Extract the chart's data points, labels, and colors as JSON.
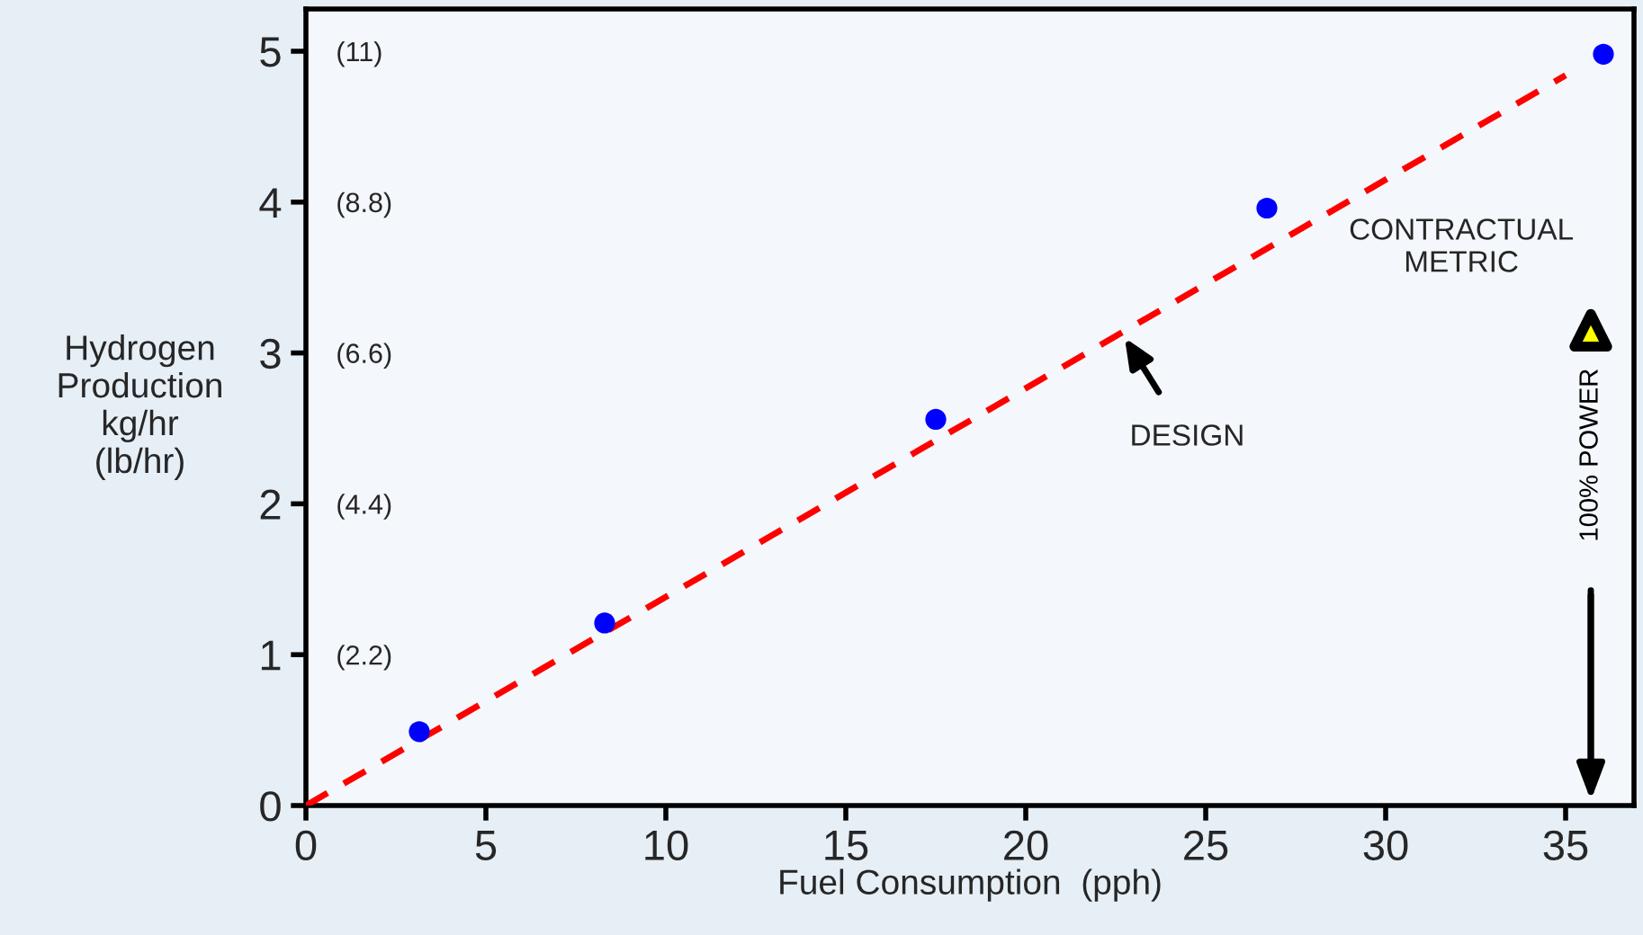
{
  "chart_data": {
    "type": "scatter",
    "xlabel": "Fuel Consumption  (pph)",
    "ylabel": "Hydrogen\nProduction\nkg/hr\n(lb/hr)",
    "xlim": [
      0,
      36.9
    ],
    "xticks": [
      0,
      5,
      10,
      15,
      20,
      25,
      30,
      35
    ],
    "ylim": [
      0,
      5.28
    ],
    "yticks": [
      0,
      1,
      2,
      3,
      4,
      5
    ],
    "grid": false,
    "y2lim": [
      0,
      11.616
    ],
    "y2ticks": [
      {
        "value": 2.2,
        "label": "(2.2)"
      },
      {
        "value": 4.4,
        "label": "(4.4)"
      },
      {
        "value": 6.6,
        "label": "(6.6)"
      },
      {
        "value": 8.8,
        "label": "(8.8)"
      },
      {
        "value": 11,
        "label": "(11)"
      }
    ],
    "series": [
      {
        "color": "#0000ff",
        "marker": "circle",
        "x": [
          3.15,
          8.3,
          17.5,
          26.7,
          36.05
        ],
        "values": [
          0.49,
          1.21,
          2.56,
          3.96,
          4.98
        ]
      },
      {
        "type": "line",
        "color": "#ff0000",
        "marker": "none",
        "line_style": "dashed",
        "x": [
          0,
          35
        ],
        "values": [
          0,
          4.84
        ]
      },
      {
        "type": "scatter",
        "color": "#ffff00",
        "marker": "triangle",
        "x": [
          35.7
        ],
        "values": [
          3.15
        ]
      }
    ],
    "ref_lines": [
      {
        "axis": "x",
        "value": 35.7,
        "label": "100% POWER",
        "color": "#000000"
      }
    ],
    "annotations": [
      {
        "text": "DESIGN",
        "x": 22.75,
        "y": 3.1
      },
      "CONTRACTUAL\nMETRIC"
    ]
  }
}
